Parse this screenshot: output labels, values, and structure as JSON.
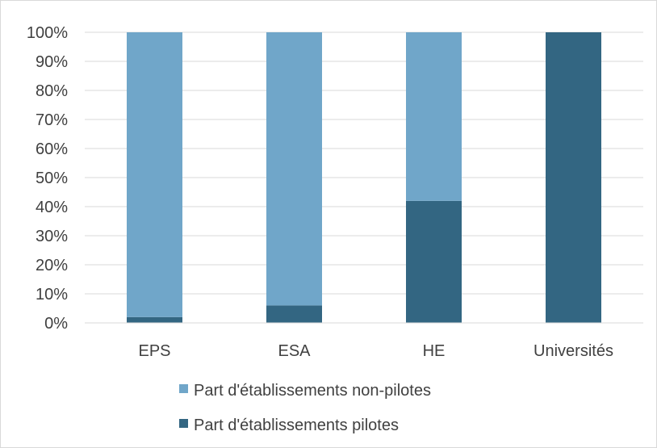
{
  "colors": {
    "non_pilotes": "#70a6c9",
    "pilotes": "#336682",
    "grid": "#d9d9d9",
    "text": "#404040"
  },
  "chart_data": {
    "type": "bar",
    "stacked": true,
    "percent_stacked": true,
    "categories": [
      "EPS",
      "ESA",
      "HE",
      "Universités"
    ],
    "series": [
      {
        "name": "Part d'établissements pilotes",
        "values": [
          2,
          6,
          42,
          100
        ],
        "color": "#336682"
      },
      {
        "name": "Part d'établissements non-pilotes",
        "values": [
          98,
          94,
          58,
          0
        ],
        "color": "#70a6c9"
      }
    ],
    "ylim": [
      0,
      100
    ],
    "yticks": [
      "0%",
      "10%",
      "20%",
      "30%",
      "40%",
      "50%",
      "60%",
      "70%",
      "80%",
      "90%",
      "100%"
    ],
    "grid": true,
    "legend_position": "bottom",
    "legend": [
      {
        "label": "Part d'établissements non-pilotes",
        "color": "#70a6c9"
      },
      {
        "label": "Part d'établissements pilotes",
        "color": "#336682"
      }
    ]
  }
}
